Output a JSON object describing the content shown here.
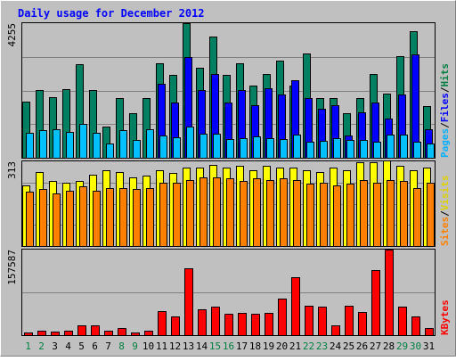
{
  "chart_data": {
    "type": "bar",
    "title": "Daily usage for December 2012",
    "categories": [
      "1",
      "2",
      "3",
      "4",
      "5",
      "6",
      "7",
      "8",
      "9",
      "10",
      "11",
      "12",
      "13",
      "14",
      "15",
      "16",
      "17",
      "18",
      "19",
      "20",
      "21",
      "22",
      "23",
      "24",
      "25",
      "26",
      "27",
      "28",
      "29",
      "30",
      "31"
    ],
    "weekend_days": [
      1,
      2,
      8,
      9,
      15,
      16,
      22,
      23,
      29,
      30
    ],
    "panels": [
      {
        "id": "hits",
        "max_label": "4255",
        "ymax": 4255,
        "legend": [
          {
            "text": "Pages",
            "color": "#00b0ff"
          },
          {
            "text": "/",
            "color": "#000000"
          },
          {
            "text": "Files",
            "color": "#0000ff"
          },
          {
            "text": "/",
            "color": "#000000"
          },
          {
            "text": "Hits",
            "color": "#008040"
          }
        ],
        "series": [
          {
            "name": "Hits",
            "color": "#008060",
            "values": [
              1780,
              2130,
              1920,
              2170,
              2970,
              2140,
              1000,
              1890,
              1400,
              1890,
              3000,
              2620,
              4255,
              2840,
              3830,
              2620,
              2980,
              2290,
              2640,
              3080,
              2290,
              3290,
              1900,
              1890,
              1400,
              1890,
              2640,
              2020,
              3220,
              4000,
              1640
            ]
          },
          {
            "name": "Files",
            "color": "#0000ff",
            "values": [
              0,
              0,
              0,
              0,
              0,
              0,
              0,
              0,
              0,
              0,
              2330,
              1760,
              3180,
              2140,
              2640,
              1760,
              2140,
              1650,
              2210,
              2000,
              2440,
              1890,
              1560,
              1650,
              700,
              1430,
              1760,
              1230,
              2000,
              3260,
              900
            ]
          },
          {
            "name": "Pages",
            "color": "#00c0ff",
            "values": [
              780,
              870,
              900,
              820,
              1080,
              800,
              460,
              870,
              570,
              900,
              700,
              650,
              1000,
              750,
              750,
              580,
              630,
              680,
              630,
              600,
              720,
              520,
              530,
              610,
              550,
              570,
              500,
              740,
              730,
              520,
              450
            ]
          }
        ]
      },
      {
        "id": "visits",
        "max_label": "313",
        "ymax": 313,
        "legend": [
          {
            "text": "Sites",
            "color": "#ff8000"
          },
          {
            "text": "/",
            "color": "#000000"
          },
          {
            "text": "Visits",
            "color": "#e0d000"
          }
        ],
        "series": [
          {
            "name": "Visits",
            "color": "#ffff00",
            "values": [
              225,
              275,
              240,
              235,
              240,
              265,
              280,
              275,
              255,
              260,
              280,
              270,
              290,
              290,
              300,
              290,
              295,
              280,
              295,
              290,
              290,
              280,
              275,
              290,
              280,
              310,
              310,
              315,
              295,
              280,
              290
            ]
          },
          {
            "name": "Sites",
            "color": "#ff8000",
            "values": [
              200,
              210,
              195,
              205,
              220,
              205,
              215,
              215,
              210,
              215,
              235,
              235,
              245,
              255,
              255,
              250,
              240,
              250,
              245,
              250,
              245,
              230,
              235,
              225,
              230,
              245,
              235,
              245,
              240,
              215,
              235
            ]
          }
        ]
      },
      {
        "id": "kbytes",
        "max_label": "157587",
        "ymax": 157587,
        "legend": [
          {
            "text": "KBytes",
            "color": "#ff0000"
          }
        ],
        "series": [
          {
            "name": "KBytes",
            "color": "#ff0000",
            "values": [
              4800,
              8000,
              6400,
              8800,
              17600,
              18400,
              8800,
              12800,
              5600,
              8000,
              44800,
              35200,
              123200,
              47200,
              52800,
              39200,
              40800,
              40000,
              40800,
              68000,
              107200,
              53600,
              52000,
              17600,
              53600,
              43200,
              120000,
              157587,
              52000,
              35200,
              13000
            ]
          }
        ]
      }
    ]
  }
}
